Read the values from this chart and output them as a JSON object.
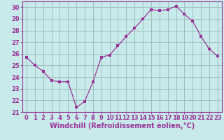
{
  "x": [
    0,
    1,
    2,
    3,
    4,
    5,
    6,
    7,
    8,
    9,
    10,
    11,
    12,
    13,
    14,
    15,
    16,
    17,
    18,
    19,
    20,
    21,
    22,
    23
  ],
  "y": [
    25.7,
    25.0,
    24.5,
    23.7,
    23.6,
    23.6,
    21.4,
    21.9,
    23.6,
    25.7,
    25.9,
    26.7,
    27.5,
    28.2,
    29.0,
    29.8,
    29.7,
    29.8,
    30.1,
    29.4,
    28.8,
    27.5,
    26.4,
    25.8
  ],
  "line_color": "#993399",
  "marker": ".",
  "bg_color": "#c8eaea",
  "grid_color": "#9fbfbf",
  "xlabel": "Windchill (Refroidissement éolien,°C)",
  "ylim": [
    21,
    30.5
  ],
  "yticks": [
    21,
    22,
    23,
    24,
    25,
    26,
    27,
    28,
    29,
    30
  ],
  "xticks": [
    0,
    1,
    2,
    3,
    4,
    5,
    6,
    7,
    8,
    9,
    10,
    11,
    12,
    13,
    14,
    15,
    16,
    17,
    18,
    19,
    20,
    21,
    22,
    23
  ],
  "axis_fontsize": 7,
  "tick_fontsize": 6
}
